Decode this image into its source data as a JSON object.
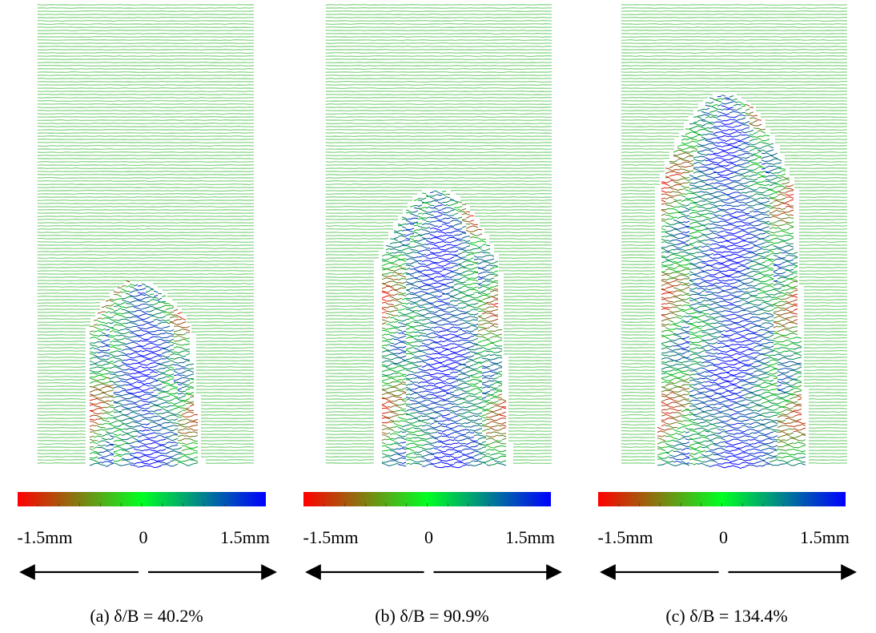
{
  "panels": [
    {
      "caption": "(a) δ/B = 40.2%",
      "scale": {
        "min": "-1.5mm",
        "mid": "0",
        "max": "1.5mm"
      }
    },
    {
      "caption": "(b) δ/B = 90.9%",
      "scale": {
        "min": "-1.5mm",
        "mid": "0",
        "max": "1.5mm"
      }
    },
    {
      "caption": "(c) δ/B = 134.4%",
      "scale": {
        "min": "-1.5mm",
        "mid": "0",
        "max": "1.5mm"
      }
    }
  ]
}
